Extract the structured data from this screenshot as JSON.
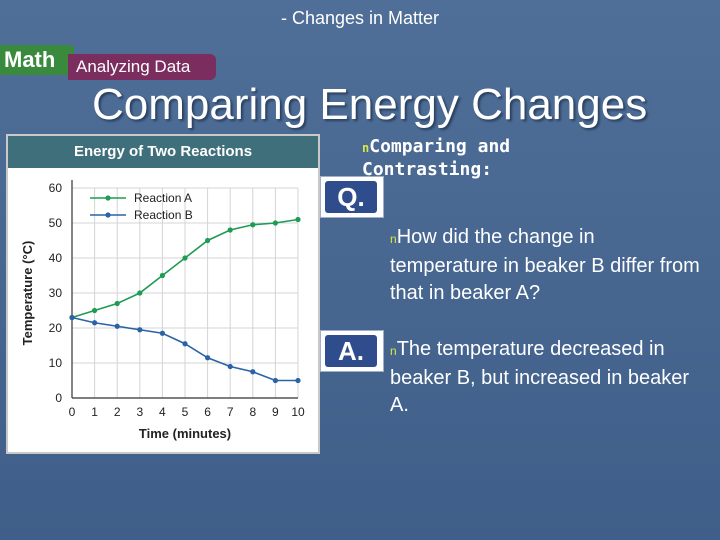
{
  "header": {
    "label": "- Changes in Matter"
  },
  "badge": {
    "math": "Math",
    "analyzing": "Analyzing Data"
  },
  "title": "Comparing Energy Changes",
  "chart_data": {
    "type": "line",
    "title": "Energy of Two Reactions",
    "xlabel": "Time (minutes)",
    "ylabel": "Temperature (°C)",
    "xlim": [
      0,
      10
    ],
    "ylim": [
      0,
      60
    ],
    "xticks": [
      0,
      1,
      2,
      3,
      4,
      5,
      6,
      7,
      8,
      9,
      10
    ],
    "yticks": [
      0,
      10,
      20,
      30,
      40,
      50,
      60
    ],
    "legend_position": "top-left",
    "grid": true,
    "x": [
      0,
      1,
      2,
      3,
      4,
      5,
      6,
      7,
      8,
      9,
      10
    ],
    "series": [
      {
        "name": "Reaction A",
        "color": "#1e9b54",
        "values": [
          23,
          25,
          27,
          30,
          35,
          40,
          45,
          48,
          49.5,
          50,
          51
        ]
      },
      {
        "name": "Reaction B",
        "color": "#2a63a6",
        "values": [
          23,
          21.5,
          20.5,
          19.5,
          18.5,
          15.5,
          11.5,
          9,
          7.5,
          5,
          5
        ]
      }
    ]
  },
  "qa": {
    "q_label": "Q.",
    "a_label": "A.",
    "bullet": "n",
    "compare": "Comparing and Contrasting:",
    "question": "How did the change in temperature in beaker B differ from that in beaker A?",
    "answer": "The temperature decreased in beaker B, but increased in beaker A."
  }
}
